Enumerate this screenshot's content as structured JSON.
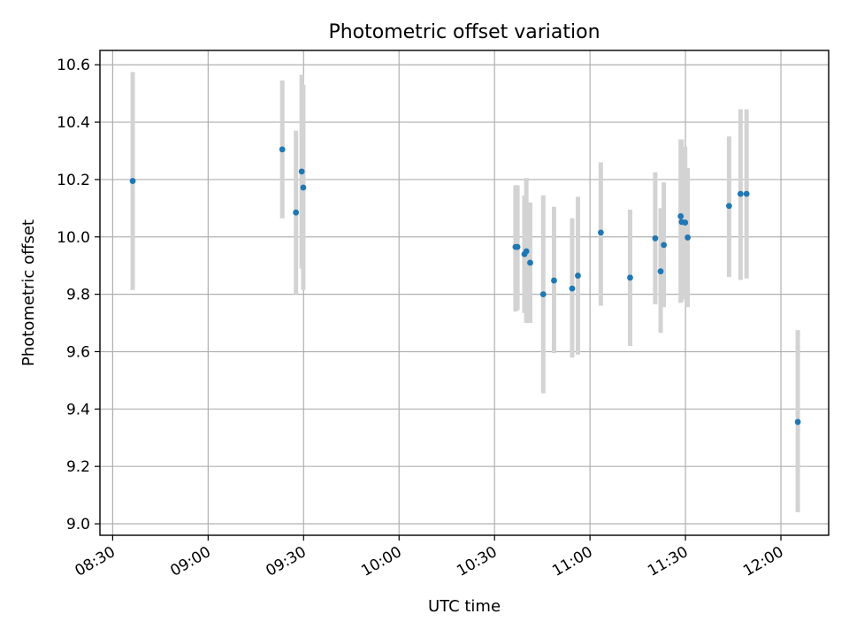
{
  "chart_data": {
    "type": "scatter",
    "title": "Photometric offset variation",
    "xlabel": "UTC time",
    "ylabel": "Photometric offset",
    "xlim": [
      "08:26",
      "12:15"
    ],
    "ylim": [
      8.96,
      10.65
    ],
    "grid": true,
    "x_ticks": [
      "08:30",
      "09:00",
      "09:30",
      "10:00",
      "10:30",
      "11:00",
      "11:30",
      "12:00"
    ],
    "y_ticks": [
      9.0,
      9.2,
      9.4,
      9.6,
      9.8,
      10.0,
      10.2,
      10.4,
      10.6
    ],
    "y_tick_labels": [
      "9.0",
      "9.2",
      "9.4",
      "9.6",
      "9.8",
      "10.0",
      "10.2",
      "10.4",
      "10.6"
    ],
    "colors": {
      "point": "#1f77b4",
      "error_bar": "#d3d3d3",
      "grid": "#b0b0b0"
    },
    "series": [
      {
        "points": [
          {
            "time": "08:36:18",
            "y": 10.195,
            "lo": 9.815,
            "hi": 10.575
          },
          {
            "time": "09:23:18",
            "y": 10.305,
            "lo": 10.065,
            "hi": 10.545
          },
          {
            "time": "09:27:36",
            "y": 10.085,
            "lo": 9.8,
            "hi": 10.37
          },
          {
            "time": "09:29:24",
            "y": 10.228,
            "lo": 9.89,
            "hi": 10.565
          },
          {
            "time": "09:29:54",
            "y": 10.172,
            "lo": 9.815,
            "hi": 10.53
          },
          {
            "time": "10:36:36",
            "y": 9.965,
            "lo": 9.74,
            "hi": 10.18
          },
          {
            "time": "10:37:12",
            "y": 9.965,
            "lo": 9.745,
            "hi": 10.18
          },
          {
            "time": "10:39:24",
            "y": 9.94,
            "lo": 9.735,
            "hi": 10.145
          },
          {
            "time": "10:40:00",
            "y": 9.95,
            "lo": 9.7,
            "hi": 10.205
          },
          {
            "time": "10:41:12",
            "y": 9.91,
            "lo": 9.7,
            "hi": 10.12
          },
          {
            "time": "10:45:18",
            "y": 9.8,
            "lo": 9.455,
            "hi": 10.145
          },
          {
            "time": "10:48:42",
            "y": 9.848,
            "lo": 9.595,
            "hi": 10.105
          },
          {
            "time": "10:54:24",
            "y": 9.82,
            "lo": 9.58,
            "hi": 10.065
          },
          {
            "time": "10:56:12",
            "y": 9.865,
            "lo": 9.59,
            "hi": 10.14
          },
          {
            "time": "11:03:24",
            "y": 10.015,
            "lo": 9.76,
            "hi": 10.26
          },
          {
            "time": "11:12:36",
            "y": 9.858,
            "lo": 9.62,
            "hi": 10.095
          },
          {
            "time": "11:20:30",
            "y": 9.995,
            "lo": 9.765,
            "hi": 10.225
          },
          {
            "time": "11:22:12",
            "y": 9.88,
            "lo": 9.665,
            "hi": 10.1
          },
          {
            "time": "11:23:12",
            "y": 9.972,
            "lo": 9.755,
            "hi": 10.19
          },
          {
            "time": "11:28:30",
            "y": 10.072,
            "lo": 9.77,
            "hi": 10.34
          },
          {
            "time": "11:28:48",
            "y": 10.052,
            "lo": 9.775,
            "hi": 10.34
          },
          {
            "time": "11:29:54",
            "y": 10.05,
            "lo": 9.785,
            "hi": 10.315
          },
          {
            "time": "11:30:42",
            "y": 9.998,
            "lo": 9.755,
            "hi": 10.24
          },
          {
            "time": "11:43:42",
            "y": 10.108,
            "lo": 9.86,
            "hi": 10.35
          },
          {
            "time": "11:47:18",
            "y": 10.15,
            "lo": 9.85,
            "hi": 10.445
          },
          {
            "time": "11:49:12",
            "y": 10.15,
            "lo": 9.855,
            "hi": 10.445
          },
          {
            "time": "12:05:18",
            "y": 9.355,
            "lo": 9.04,
            "hi": 9.675
          }
        ]
      }
    ]
  }
}
